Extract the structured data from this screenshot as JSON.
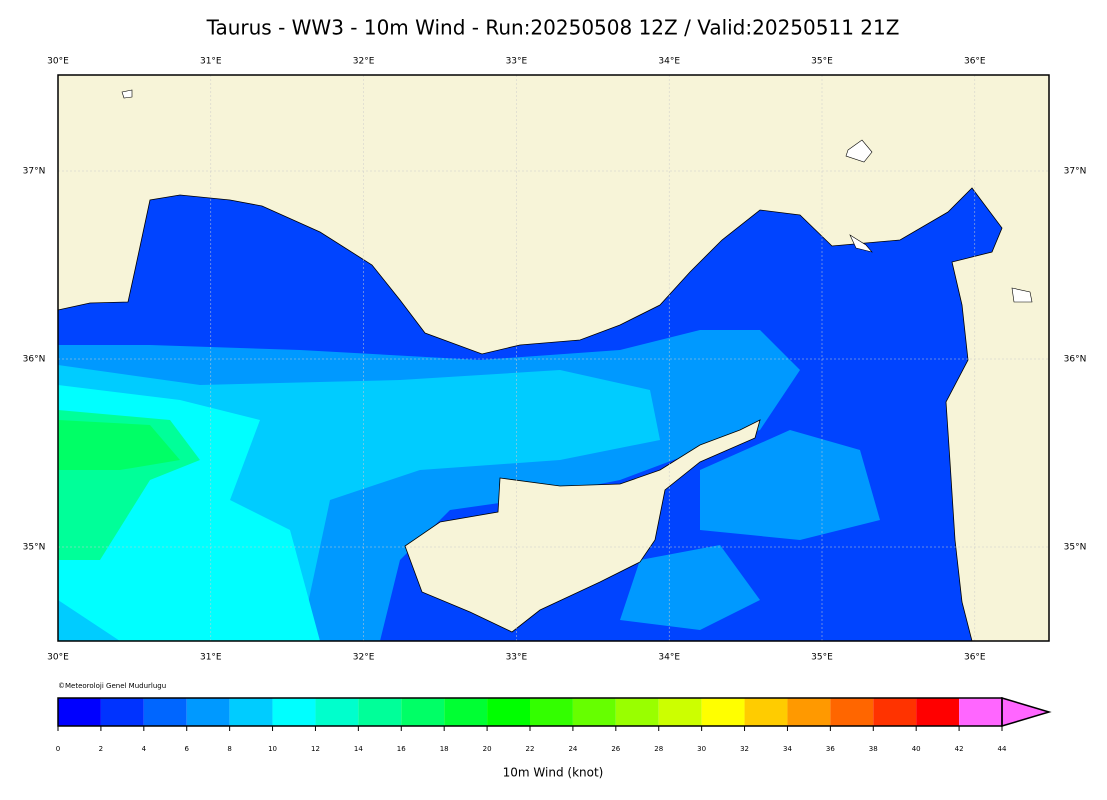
{
  "title": "Taurus - WW3 - 10m Wind - Run:20250508 12Z / Valid:20250511 21Z",
  "map": {
    "lon_labels": [
      "30°E",
      "31°E",
      "32°E",
      "33°E",
      "34°E",
      "35°E",
      "36°E"
    ],
    "lat_labels": [
      "37°N",
      "36°N",
      "35°N"
    ],
    "copyright": "©Meteoroloji Genel Mudurlugu"
  },
  "colorbar": {
    "label": "10m Wind (knot)",
    "ticks": [
      0,
      2,
      4,
      6,
      8,
      10,
      12,
      14,
      16,
      18,
      20,
      22,
      24,
      26,
      28,
      30,
      32,
      34,
      36,
      38,
      40,
      42,
      44
    ],
    "colors": [
      "#0000ff",
      "#0033ff",
      "#0066ff",
      "#0099ff",
      "#00ccff",
      "#00ffff",
      "#00ffcc",
      "#00ff99",
      "#00ff66",
      "#00ff33",
      "#00ff00",
      "#33ff00",
      "#66ff00",
      "#99ff00",
      "#ccff00",
      "#ffff00",
      "#ffcc00",
      "#ff9900",
      "#ff6600",
      "#ff3300",
      "#ff0000",
      "#ff66ff"
    ]
  }
}
